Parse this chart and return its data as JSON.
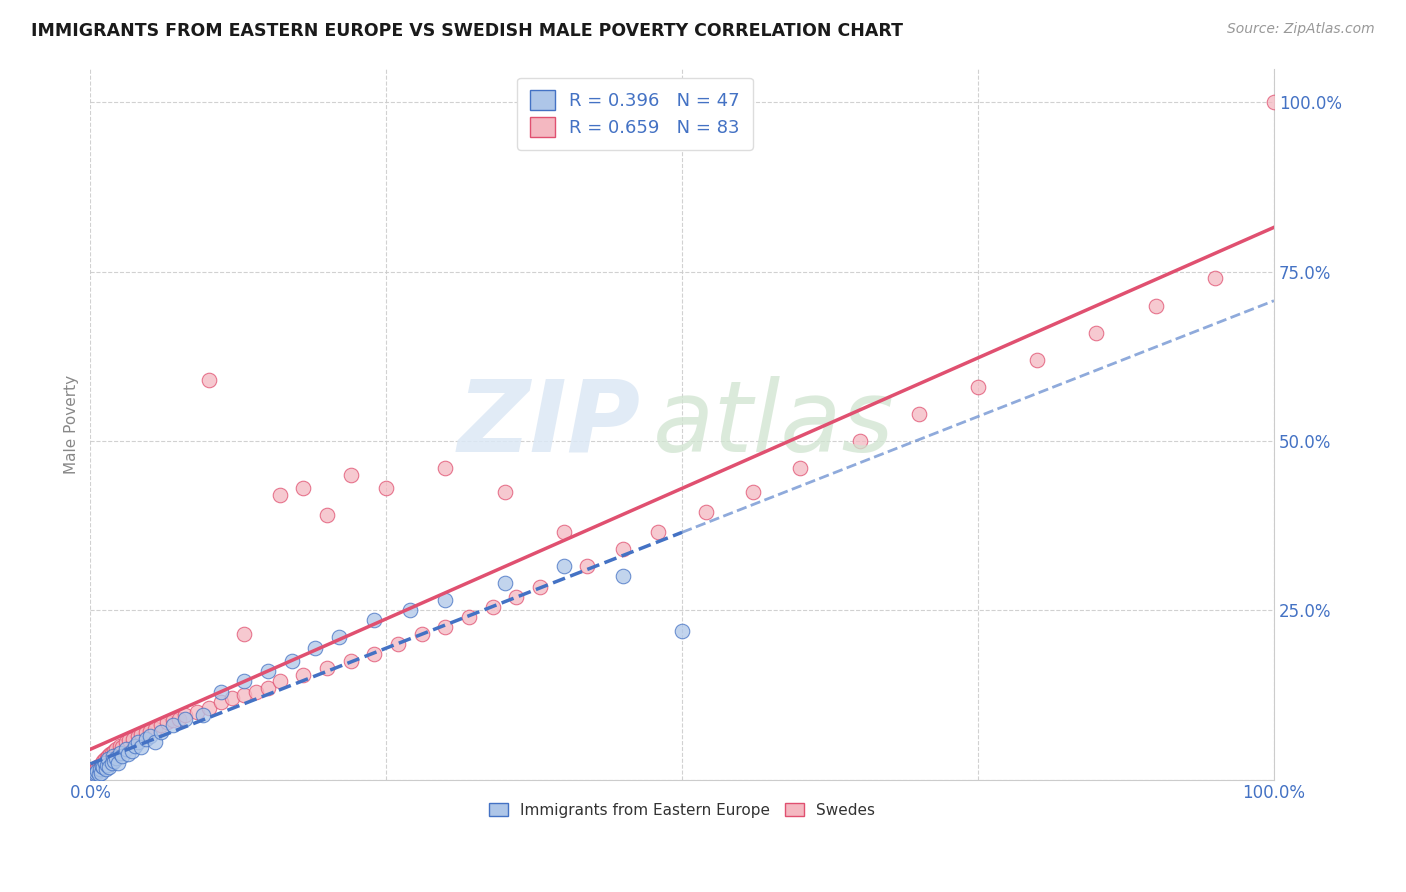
{
  "title": "IMMIGRANTS FROM EASTERN EUROPE VS SWEDISH MALE POVERTY CORRELATION CHART",
  "source": "Source: ZipAtlas.com",
  "ylabel": "Male Poverty",
  "legend_blue_r": "R = 0.396",
  "legend_blue_n": "N = 47",
  "legend_pink_r": "R = 0.659",
  "legend_pink_n": "N = 83",
  "legend_label_blue": "Immigrants from Eastern Europe",
  "legend_label_pink": "Swedes",
  "blue_color": "#aec6e8",
  "blue_line_color": "#4472c4",
  "pink_color": "#f4b8c1",
  "pink_line_color": "#e05070",
  "label_color": "#4472c4",
  "title_color": "#1a1a1a",
  "grid_color": "#cccccc",
  "background_color": "#ffffff",
  "watermark_zip_color": "#dce8f5",
  "watermark_atlas_color": "#d0e4d0",
  "blue_x": [
    0.002,
    0.004,
    0.005,
    0.006,
    0.007,
    0.008,
    0.009,
    0.01,
    0.011,
    0.012,
    0.013,
    0.014,
    0.015,
    0.016,
    0.018,
    0.019,
    0.02,
    0.022,
    0.023,
    0.025,
    0.027,
    0.03,
    0.032,
    0.035,
    0.038,
    0.04,
    0.043,
    0.047,
    0.05,
    0.055,
    0.06,
    0.07,
    0.08,
    0.095,
    0.11,
    0.13,
    0.15,
    0.17,
    0.19,
    0.21,
    0.24,
    0.27,
    0.3,
    0.35,
    0.4,
    0.45,
    0.5
  ],
  "blue_y": [
    0.005,
    0.008,
    0.01,
    0.012,
    0.008,
    0.015,
    0.01,
    0.02,
    0.018,
    0.025,
    0.015,
    0.022,
    0.03,
    0.018,
    0.025,
    0.035,
    0.028,
    0.032,
    0.025,
    0.04,
    0.035,
    0.045,
    0.038,
    0.042,
    0.05,
    0.055,
    0.048,
    0.06,
    0.065,
    0.055,
    0.07,
    0.08,
    0.09,
    0.095,
    0.13,
    0.145,
    0.16,
    0.175,
    0.195,
    0.21,
    0.235,
    0.25,
    0.265,
    0.29,
    0.315,
    0.3,
    0.22
  ],
  "pink_x": [
    0.001,
    0.002,
    0.003,
    0.004,
    0.005,
    0.005,
    0.006,
    0.007,
    0.008,
    0.009,
    0.01,
    0.01,
    0.011,
    0.012,
    0.013,
    0.014,
    0.015,
    0.016,
    0.017,
    0.018,
    0.019,
    0.02,
    0.021,
    0.022,
    0.023,
    0.025,
    0.027,
    0.03,
    0.033,
    0.036,
    0.04,
    0.043,
    0.047,
    0.05,
    0.055,
    0.06,
    0.065,
    0.07,
    0.075,
    0.08,
    0.09,
    0.1,
    0.11,
    0.12,
    0.13,
    0.14,
    0.15,
    0.16,
    0.18,
    0.2,
    0.22,
    0.24,
    0.26,
    0.28,
    0.3,
    0.32,
    0.34,
    0.36,
    0.38,
    0.42,
    0.45,
    0.48,
    0.52,
    0.56,
    0.6,
    0.65,
    0.7,
    0.75,
    0.8,
    0.85,
    0.9,
    0.95,
    1.0,
    0.25,
    0.35,
    0.3,
    0.4,
    0.1,
    0.18,
    0.22,
    0.2,
    0.16,
    0.13
  ],
  "pink_y": [
    0.005,
    0.008,
    0.01,
    0.012,
    0.015,
    0.01,
    0.018,
    0.02,
    0.015,
    0.022,
    0.025,
    0.018,
    0.028,
    0.03,
    0.022,
    0.032,
    0.035,
    0.025,
    0.038,
    0.04,
    0.03,
    0.042,
    0.035,
    0.045,
    0.038,
    0.05,
    0.048,
    0.055,
    0.058,
    0.06,
    0.065,
    0.068,
    0.07,
    0.072,
    0.075,
    0.08,
    0.085,
    0.088,
    0.09,
    0.095,
    0.1,
    0.105,
    0.115,
    0.12,
    0.125,
    0.13,
    0.135,
    0.145,
    0.155,
    0.165,
    0.175,
    0.185,
    0.2,
    0.215,
    0.225,
    0.24,
    0.255,
    0.27,
    0.285,
    0.315,
    0.34,
    0.365,
    0.395,
    0.425,
    0.46,
    0.5,
    0.54,
    0.58,
    0.62,
    0.66,
    0.7,
    0.74,
    1.0,
    0.43,
    0.425,
    0.46,
    0.365,
    0.59,
    0.43,
    0.45,
    0.39,
    0.42,
    0.215
  ],
  "xlim": [
    0.0,
    1.0
  ],
  "ylim": [
    0.0,
    1.05
  ]
}
